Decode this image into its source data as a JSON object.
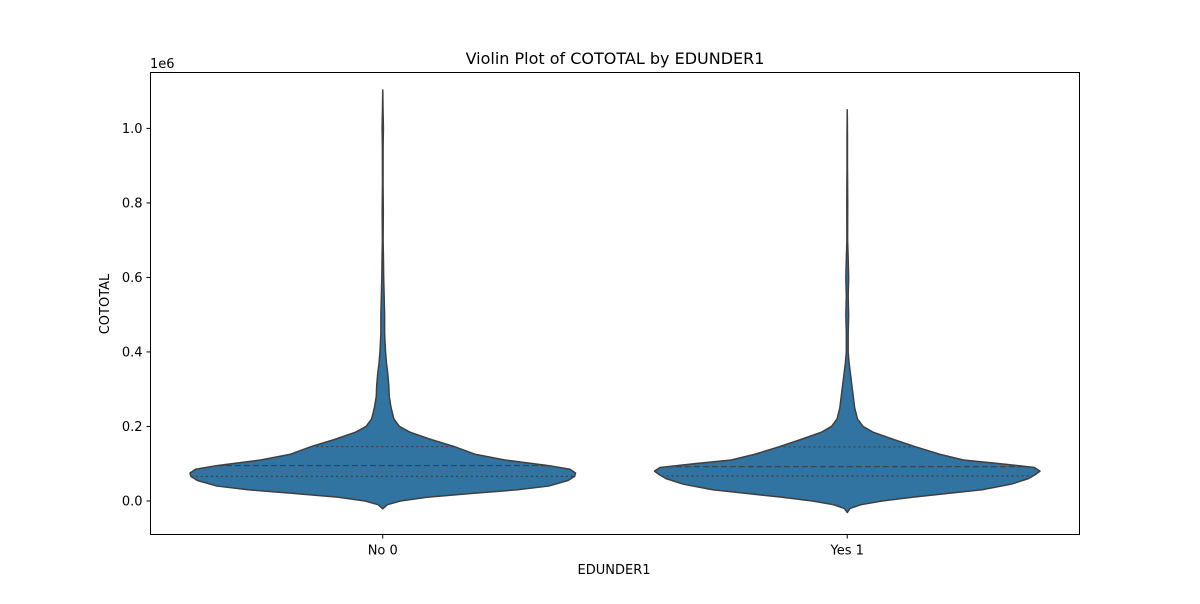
{
  "chart_data": {
    "type": "violin",
    "title": "Violin Plot of COTOTAL by EDUNDER1",
    "xlabel": "EDUNDER1",
    "ylabel": "COTOTAL",
    "y_scale_label": "1e6",
    "ylim": [
      -0.09,
      1.15
    ],
    "ytick_values": [
      0.0,
      0.2,
      0.4,
      0.6,
      0.8,
      1.0
    ],
    "ytick_labels": [
      "0.0",
      "0.2",
      "0.4",
      "0.6",
      "0.8",
      "1.0"
    ],
    "categories": [
      "No 0",
      "Yes 1"
    ],
    "color": "#3274a1",
    "edge_color": "#3f3f3f",
    "inner": "quartile",
    "grid": false,
    "violins": [
      {
        "category": "No 0",
        "min": -0.021,
        "max": 1.103,
        "q1": 0.066,
        "median": 0.095,
        "q3": 0.146,
        "max_half_width": 0.415,
        "profile": [
          [
            -0.021,
            0.0
          ],
          [
            -0.01,
            0.01
          ],
          [
            0.0,
            0.038
          ],
          [
            0.01,
            0.095
          ],
          [
            0.02,
            0.19
          ],
          [
            0.03,
            0.29
          ],
          [
            0.04,
            0.357
          ],
          [
            0.055,
            0.399
          ],
          [
            0.066,
            0.413
          ],
          [
            0.075,
            0.415
          ],
          [
            0.085,
            0.403
          ],
          [
            0.095,
            0.357
          ],
          [
            0.11,
            0.263
          ],
          [
            0.125,
            0.2
          ],
          [
            0.146,
            0.154
          ],
          [
            0.165,
            0.104
          ],
          [
            0.185,
            0.058
          ],
          [
            0.2,
            0.036
          ],
          [
            0.22,
            0.024
          ],
          [
            0.25,
            0.018
          ],
          [
            0.28,
            0.014
          ],
          [
            0.31,
            0.013
          ],
          [
            0.34,
            0.011
          ],
          [
            0.37,
            0.008
          ],
          [
            0.4,
            0.006
          ],
          [
            0.45,
            0.004
          ],
          [
            0.5,
            0.004
          ],
          [
            0.55,
            0.003
          ],
          [
            0.6,
            0.002
          ],
          [
            0.65,
            0.0015
          ],
          [
            0.7,
            0.0008
          ],
          [
            0.78,
            0.0012
          ],
          [
            0.85,
            0.0006
          ],
          [
            0.95,
            0.0008
          ],
          [
            1.0,
            0.0014
          ],
          [
            1.05,
            0.0006
          ],
          [
            1.103,
            0.0
          ]
        ]
      },
      {
        "category": "Yes 1",
        "min": -0.031,
        "max": 1.05,
        "q1": 0.067,
        "median": 0.092,
        "q3": 0.145,
        "max_half_width": 0.415,
        "profile": [
          [
            -0.031,
            0.0
          ],
          [
            -0.02,
            0.006
          ],
          [
            -0.01,
            0.03
          ],
          [
            0.0,
            0.075
          ],
          [
            0.01,
            0.14
          ],
          [
            0.02,
            0.215
          ],
          [
            0.03,
            0.29
          ],
          [
            0.045,
            0.353
          ],
          [
            0.06,
            0.39
          ],
          [
            0.07,
            0.404
          ],
          [
            0.08,
            0.415
          ],
          [
            0.09,
            0.403
          ],
          [
            0.1,
            0.33
          ],
          [
            0.11,
            0.25
          ],
          [
            0.125,
            0.2
          ],
          [
            0.145,
            0.148
          ],
          [
            0.165,
            0.1
          ],
          [
            0.185,
            0.055
          ],
          [
            0.2,
            0.034
          ],
          [
            0.22,
            0.022
          ],
          [
            0.25,
            0.016
          ],
          [
            0.28,
            0.013
          ],
          [
            0.31,
            0.01
          ],
          [
            0.34,
            0.007
          ],
          [
            0.37,
            0.004
          ],
          [
            0.4,
            0.002
          ],
          [
            0.45,
            0.002
          ],
          [
            0.5,
            0.003
          ],
          [
            0.55,
            0.002
          ],
          [
            0.6,
            0.003
          ],
          [
            0.65,
            0.002
          ],
          [
            0.7,
            0.0008
          ],
          [
            0.8,
            0.001
          ],
          [
            0.9,
            0.0005
          ],
          [
            0.98,
            0.0005
          ],
          [
            1.05,
            0.0
          ]
        ]
      }
    ]
  }
}
